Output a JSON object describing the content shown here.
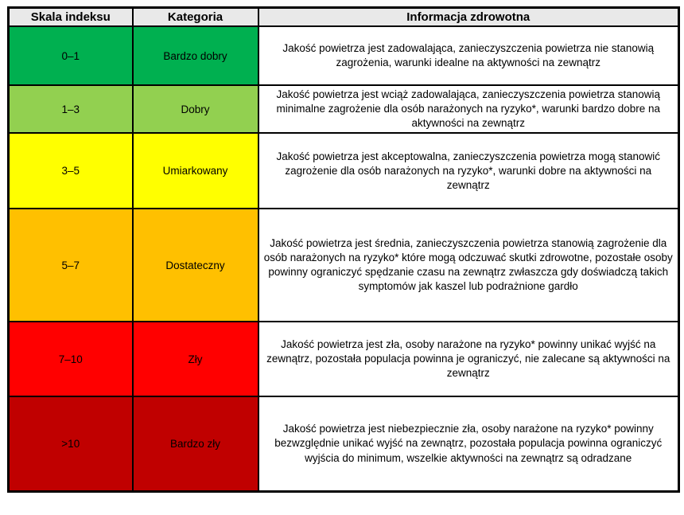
{
  "table": {
    "title": "AQI health information table",
    "headers": [
      {
        "label": "Skala indeksu"
      },
      {
        "label": "Kategoria"
      },
      {
        "label": "Informacja zdrowotna"
      }
    ],
    "header_bg": "#e9e9e9",
    "rows": [
      {
        "scale": "0–1",
        "category": "Bardzo dobry",
        "color": "#00B050",
        "info": "Jakość powietrza jest zadowalająca, zanieczyszczenia powietrza nie stanowią zagrożenia, warunki idealne na aktywności na zewnątrz"
      },
      {
        "scale": "1–3",
        "category": "Dobry",
        "color": "#92D050",
        "info": "Jakość powietrza jest wciąż zadowalająca, zanieczyszczenia powietrza stanowią minimalne zagrożenie dla osób narażonych na ryzyko*, warunki bardzo dobre na aktywności na zewnątrz"
      },
      {
        "scale": "3–5",
        "category": "Umiarkowany",
        "color": "#FFFF00",
        "info": "Jakość powietrza jest akceptowalna, zanieczyszczenia powietrza mogą stanowić zagrożenie dla osób narażonych na ryzyko*, warunki dobre na aktywności na zewnątrz"
      },
      {
        "scale": "5–7",
        "category": "Dostateczny",
        "color": "#FFC000",
        "info": "Jakość powietrza jest średnia, zanieczyszczenia powietrza stanowią zagrożenie dla osób narażonych na ryzyko* które mogą odczuwać skutki zdrowotne, pozostałe osoby powinny ograniczyć spędzanie czasu na zewnątrz zwłaszcza gdy doświadczą takich symptomów jak kaszel lub podrażnione gardło"
      },
      {
        "scale": "7–10",
        "category": "Zły",
        "color": "#FF0000",
        "info": "Jakość powietrza jest zła, osoby narażone na ryzyko* powinny unikać wyjść na zewnątrz, pozostała populacja powinna je ograniczyć, nie zalecane są aktywności na zewnątrz"
      },
      {
        "scale": ">10",
        "category": "Bardzo zły",
        "color": "#C00000",
        "info": "Jakość powietrza jest niebezpiecznie zła, osoby narażone na ryzyko* powinny bezwzględnie unikać wyjść na zewnątrz, pozostała populacja powinna ograniczyć wyjścia do minimum, wszelkie aktywności na zewnątrz są odradzane"
      }
    ]
  }
}
